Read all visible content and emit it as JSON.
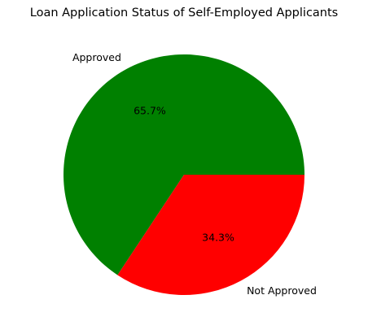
{
  "chart_data": {
    "type": "pie",
    "title": "Loan Application Status of Self-Employed Applicants",
    "slices": [
      {
        "label": "Approved",
        "value": 65.7,
        "pct_label": "65.7%",
        "color": "#008000"
      },
      {
        "label": "Not Approved",
        "value": 34.3,
        "pct_label": "34.3%",
        "color": "#ff0000"
      }
    ],
    "start_angle_deg": 0,
    "direction": "counterclockwise"
  }
}
